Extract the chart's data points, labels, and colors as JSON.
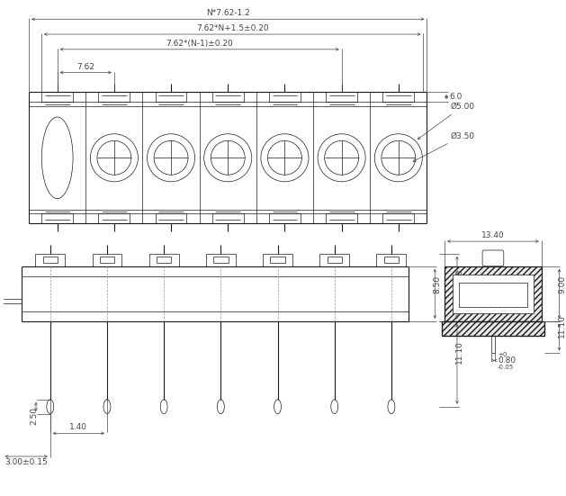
{
  "bg_color": "#ffffff",
  "line_color": "#1a1a1a",
  "dim_color": "#444444",
  "thin_lw": 0.5,
  "med_lw": 0.8,
  "thick_lw": 1.2,
  "font_size": 6.5,
  "n_terminals": 7,
  "annotations": {
    "top_dim1": "N*7.62-1.2",
    "top_dim2": "7.62*N+1.5±0.20",
    "top_dim3": "7.62*(N-1)±0.20",
    "top_dim4": "7.62",
    "top_dim5": "6.0",
    "top_dim6": "Ø5.00",
    "top_dim7": "Ø3.50",
    "bot_dim1": "8.50",
    "bot_dim2": "1.40",
    "bot_dim3": "2.50",
    "bot_dim4": "3.00±0.15",
    "bot_dim5": "9.00",
    "bot_dim6": "11.10",
    "bot_dim7": "13.40",
    "bot_dim8_top": "+0",
    "bot_dim8_main": "0.80",
    "bot_dim8_bot": "-0.05"
  }
}
